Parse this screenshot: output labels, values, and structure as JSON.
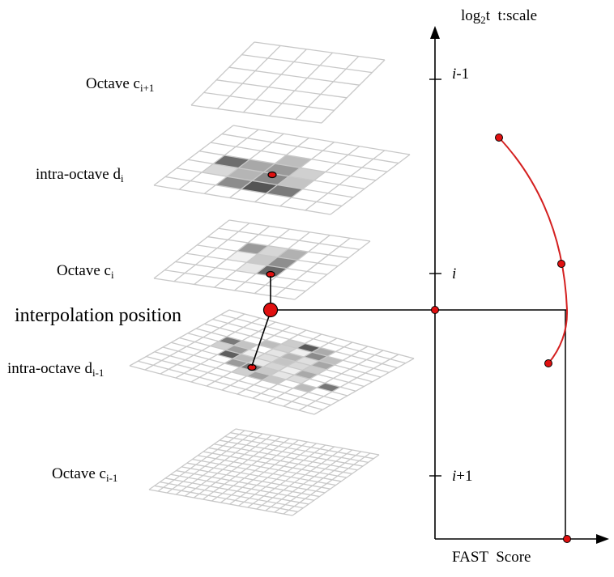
{
  "layers": [
    {
      "name": "octave-c-i+1",
      "label_main": "Octave c",
      "label_sub": "i+1",
      "cells": 5
    },
    {
      "name": "intra-octave-d-i",
      "label_main": "intra-octave d",
      "label_sub": "i",
      "cells": 7
    },
    {
      "name": "octave-c-i",
      "label_main": "Octave c",
      "label_sub": "i",
      "cells": 7
    },
    {
      "name": "intra-octave-d-i-1",
      "label_main": "intra-octave d",
      "label_sub": "i-1",
      "cells": 12
    },
    {
      "name": "octave-c-i-1",
      "label_main": "Octave c",
      "label_sub": "i-1",
      "cells": 16
    }
  ],
  "interpolation_label": "interpolation position",
  "y_axis": {
    "label_main": "log",
    "label_sub": "2",
    "label_rest": "t  t:scale"
  },
  "x_axis": {
    "label": "FAST  Score"
  },
  "ticks": [
    {
      "label_italic": "i",
      "label_rest": "-1"
    },
    {
      "label_italic": "i",
      "label_rest": ""
    },
    {
      "label_italic": "i",
      "label_rest": "+1"
    }
  ],
  "colors": {
    "grid": "#c8c8c8",
    "curve": "#d42020",
    "marker_fill": "#e01010",
    "axis": "#000000"
  }
}
